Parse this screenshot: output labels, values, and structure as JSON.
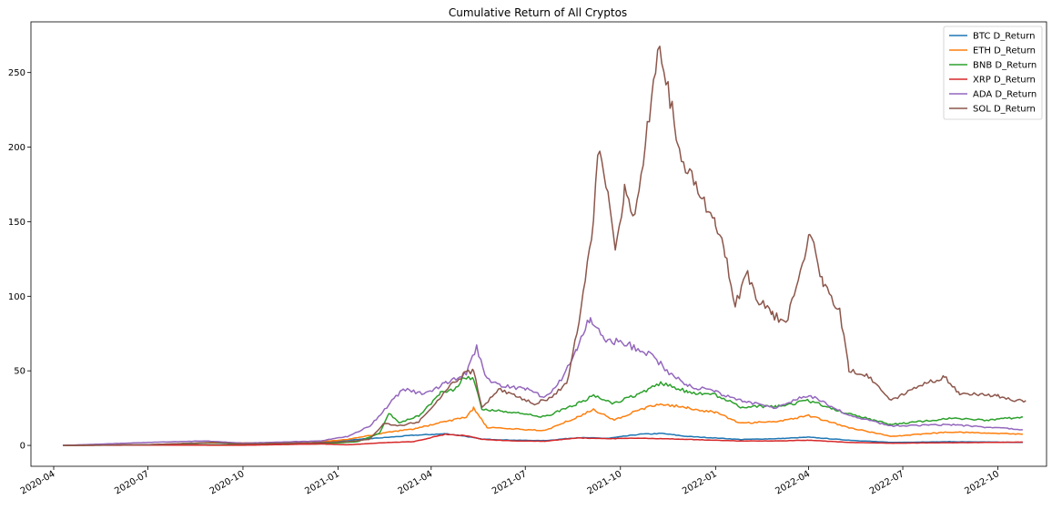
{
  "chart_data": {
    "type": "line",
    "title": "Cumulative Return of All Cryptos",
    "xlabel": "",
    "ylabel": "",
    "xlim": [
      "2020-03-10",
      "2022-11-17"
    ],
    "ylim": [
      -14,
      284
    ],
    "x_ticks": [
      "2020-04",
      "2020-07",
      "2020-10",
      "2021-01",
      "2021-04",
      "2021-07",
      "2021-10",
      "2022-01",
      "2022-04",
      "2022-07",
      "2022-10"
    ],
    "y_ticks": [
      0,
      50,
      100,
      150,
      200,
      250
    ],
    "grid": false,
    "legend_position": "top-right",
    "series": [
      {
        "name": "BTC D_Return",
        "color": "#1f77b4",
        "points": [
          [
            "2020-04-10",
            0
          ],
          [
            "2020-07-01",
            0.4
          ],
          [
            "2020-10-01",
            0.5
          ],
          [
            "2020-12-15",
            1.5
          ],
          [
            "2021-01-10",
            3.5
          ],
          [
            "2021-02-20",
            5.5
          ],
          [
            "2021-03-15",
            6.8
          ],
          [
            "2021-04-15",
            7.8
          ],
          [
            "2021-05-01",
            6.5
          ],
          [
            "2021-05-20",
            4.2
          ],
          [
            "2021-06-20",
            3.5
          ],
          [
            "2021-07-20",
            3.2
          ],
          [
            "2021-08-20",
            5.2
          ],
          [
            "2021-09-20",
            4.8
          ],
          [
            "2021-10-20",
            7.5
          ],
          [
            "2021-11-10",
            8.0
          ],
          [
            "2021-12-05",
            6.0
          ],
          [
            "2022-01-01",
            5.0
          ],
          [
            "2022-01-25",
            4.0
          ],
          [
            "2022-03-01",
            4.5
          ],
          [
            "2022-04-01",
            5.5
          ],
          [
            "2022-05-10",
            3.5
          ],
          [
            "2022-06-20",
            2.0
          ],
          [
            "2022-08-15",
            2.5
          ],
          [
            "2022-10-25",
            2.0
          ]
        ]
      },
      {
        "name": "ETH D_Return",
        "color": "#ff7f0e",
        "points": [
          [
            "2020-04-10",
            0
          ],
          [
            "2020-07-01",
            0.5
          ],
          [
            "2020-09-01",
            1.8
          ],
          [
            "2020-12-01",
            1.5
          ],
          [
            "2021-01-10",
            4.0
          ],
          [
            "2021-02-20",
            9.0
          ],
          [
            "2021-03-15",
            11.0
          ],
          [
            "2021-04-15",
            16.0
          ],
          [
            "2021-05-05",
            19.0
          ],
          [
            "2021-05-12",
            25.0
          ],
          [
            "2021-05-25",
            12.0
          ],
          [
            "2021-06-20",
            11.0
          ],
          [
            "2021-07-20",
            10.0
          ],
          [
            "2021-08-20",
            19.0
          ],
          [
            "2021-09-05",
            24.0
          ],
          [
            "2021-09-25",
            17.0
          ],
          [
            "2021-10-20",
            24.0
          ],
          [
            "2021-11-10",
            28.0
          ],
          [
            "2021-12-05",
            25.0
          ],
          [
            "2022-01-01",
            22.0
          ],
          [
            "2022-01-25",
            15.0
          ],
          [
            "2022-03-01",
            16.0
          ],
          [
            "2022-04-01",
            20.0
          ],
          [
            "2022-05-10",
            12.0
          ],
          [
            "2022-06-20",
            6.0
          ],
          [
            "2022-08-15",
            9.0
          ],
          [
            "2022-10-25",
            7.5
          ]
        ]
      },
      {
        "name": "BNB D_Return",
        "color": "#2ca02c",
        "points": [
          [
            "2020-04-10",
            0
          ],
          [
            "2020-07-01",
            0.3
          ],
          [
            "2020-10-01",
            0.4
          ],
          [
            "2020-12-15",
            1.0
          ],
          [
            "2021-01-20",
            2.5
          ],
          [
            "2021-02-10",
            8.0
          ],
          [
            "2021-02-19",
            22.0
          ],
          [
            "2021-03-01",
            15.0
          ],
          [
            "2021-03-20",
            20.0
          ],
          [
            "2021-04-10",
            35.0
          ],
          [
            "2021-04-25",
            38.0
          ],
          [
            "2021-05-03",
            46.0
          ],
          [
            "2021-05-12",
            44.0
          ],
          [
            "2021-05-20",
            24.0
          ],
          [
            "2021-06-10",
            23.0
          ],
          [
            "2021-07-20",
            19.0
          ],
          [
            "2021-08-20",
            28.0
          ],
          [
            "2021-09-05",
            33.0
          ],
          [
            "2021-09-25",
            28.0
          ],
          [
            "2021-10-20",
            35.0
          ],
          [
            "2021-11-10",
            42.0
          ],
          [
            "2021-12-05",
            36.0
          ],
          [
            "2022-01-01",
            34.0
          ],
          [
            "2022-01-25",
            26.0
          ],
          [
            "2022-03-01",
            26.0
          ],
          [
            "2022-04-01",
            30.0
          ],
          [
            "2022-05-10",
            21.0
          ],
          [
            "2022-06-20",
            14.0
          ],
          [
            "2022-08-15",
            18.0
          ],
          [
            "2022-09-20",
            17.0
          ],
          [
            "2022-10-25",
            19.0
          ]
        ]
      },
      {
        "name": "XRP D_Return",
        "color": "#d62728",
        "points": [
          [
            "2020-04-10",
            0
          ],
          [
            "2020-07-01",
            0.2
          ],
          [
            "2020-10-01",
            0.1
          ],
          [
            "2020-12-15",
            1.0
          ],
          [
            "2021-01-10",
            0.4
          ],
          [
            "2021-02-20",
            2.0
          ],
          [
            "2021-03-15",
            2.5
          ],
          [
            "2021-04-15",
            7.5
          ],
          [
            "2021-05-05",
            6.5
          ],
          [
            "2021-05-20",
            4.0
          ],
          [
            "2021-06-20",
            3.0
          ],
          [
            "2021-07-20",
            2.8
          ],
          [
            "2021-08-20",
            5.0
          ],
          [
            "2021-09-20",
            4.5
          ],
          [
            "2021-10-20",
            4.8
          ],
          [
            "2021-11-10",
            4.5
          ],
          [
            "2021-12-05",
            4.0
          ],
          [
            "2022-01-01",
            3.5
          ],
          [
            "2022-01-25",
            3.0
          ],
          [
            "2022-03-01",
            3.0
          ],
          [
            "2022-04-01",
            3.5
          ],
          [
            "2022-05-10",
            2.0
          ],
          [
            "2022-06-20",
            1.5
          ],
          [
            "2022-08-15",
            1.8
          ],
          [
            "2022-10-25",
            2.2
          ]
        ]
      },
      {
        "name": "ADA D_Return",
        "color": "#9467bd",
        "points": [
          [
            "2020-04-10",
            0
          ],
          [
            "2020-07-01",
            2.0
          ],
          [
            "2020-08-25",
            3.0
          ],
          [
            "2020-10-01",
            1.5
          ],
          [
            "2020-12-15",
            3.0
          ],
          [
            "2021-01-10",
            6.0
          ],
          [
            "2021-02-01",
            13.0
          ],
          [
            "2021-02-20",
            28.0
          ],
          [
            "2021-03-05",
            38.0
          ],
          [
            "2021-03-25",
            34.0
          ],
          [
            "2021-04-15",
            42.0
          ],
          [
            "2021-05-05",
            48.0
          ],
          [
            "2021-05-15",
            66.0
          ],
          [
            "2021-05-25",
            44.0
          ],
          [
            "2021-06-10",
            40.0
          ],
          [
            "2021-07-01",
            38.0
          ],
          [
            "2021-07-20",
            32.0
          ],
          [
            "2021-08-05",
            44.0
          ],
          [
            "2021-08-20",
            65.0
          ],
          [
            "2021-09-02",
            86.0
          ],
          [
            "2021-09-15",
            72.0
          ],
          [
            "2021-10-10",
            67.0
          ],
          [
            "2021-11-01",
            60.0
          ],
          [
            "2021-11-20",
            47.0
          ],
          [
            "2021-12-05",
            40.0
          ],
          [
            "2022-01-01",
            36.0
          ],
          [
            "2022-01-25",
            30.0
          ],
          [
            "2022-03-01",
            25.0
          ],
          [
            "2022-04-01",
            34.0
          ],
          [
            "2022-05-10",
            20.0
          ],
          [
            "2022-06-20",
            13.0
          ],
          [
            "2022-08-15",
            14.0
          ],
          [
            "2022-10-25",
            10.5
          ]
        ]
      },
      {
        "name": "SOL D_Return",
        "color": "#8c564b",
        "points": [
          [
            "2020-04-10",
            0
          ],
          [
            "2020-07-01",
            0.5
          ],
          [
            "2020-09-01",
            2.0
          ],
          [
            "2020-10-01",
            1.0
          ],
          [
            "2020-12-15",
            2.0
          ],
          [
            "2021-01-10",
            2.5
          ],
          [
            "2021-01-31",
            4.0
          ],
          [
            "2021-02-15",
            15.0
          ],
          [
            "2021-02-28",
            13.0
          ],
          [
            "2021-03-20",
            16.0
          ],
          [
            "2021-04-05",
            28.0
          ],
          [
            "2021-04-20",
            40.0
          ],
          [
            "2021-05-03",
            48.0
          ],
          [
            "2021-05-12",
            50.0
          ],
          [
            "2021-05-20",
            25.0
          ],
          [
            "2021-06-05",
            38.0
          ],
          [
            "2021-06-20",
            34.0
          ],
          [
            "2021-07-10",
            28.0
          ],
          [
            "2021-07-25",
            32.0
          ],
          [
            "2021-08-10",
            42.0
          ],
          [
            "2021-08-20",
            75.0
          ],
          [
            "2021-08-28",
            110.0
          ],
          [
            "2021-09-05",
            150.0
          ],
          [
            "2021-09-09",
            200.0
          ],
          [
            "2021-09-20",
            165.0
          ],
          [
            "2021-09-26",
            135.0
          ],
          [
            "2021-10-05",
            170.0
          ],
          [
            "2021-10-15",
            150.0
          ],
          [
            "2021-10-25",
            200.0
          ],
          [
            "2021-11-06",
            270.0
          ],
          [
            "2021-11-12",
            255.0
          ],
          [
            "2021-11-25",
            205.0
          ],
          [
            "2021-12-05",
            185.0
          ],
          [
            "2021-12-15",
            172.0
          ],
          [
            "2022-01-01",
            150.0
          ],
          [
            "2022-01-10",
            128.0
          ],
          [
            "2022-01-20",
            95.0
          ],
          [
            "2022-02-01",
            115.0
          ],
          [
            "2022-02-10",
            98.0
          ],
          [
            "2022-02-25",
            88.0
          ],
          [
            "2022-03-10",
            82.0
          ],
          [
            "2022-03-20",
            105.0
          ],
          [
            "2022-04-02",
            142.0
          ],
          [
            "2022-04-15",
            110.0
          ],
          [
            "2022-05-01",
            90.0
          ],
          [
            "2022-05-10",
            50.0
          ],
          [
            "2022-05-25",
            48.0
          ],
          [
            "2022-06-10",
            38.0
          ],
          [
            "2022-06-20",
            30.0
          ],
          [
            "2022-07-10",
            38.0
          ],
          [
            "2022-08-10",
            46.0
          ],
          [
            "2022-08-25",
            35.0
          ],
          [
            "2022-09-10",
            34.0
          ],
          [
            "2022-10-01",
            33.0
          ],
          [
            "2022-10-20",
            30.0
          ],
          [
            "2022-10-28",
            30.0
          ]
        ]
      }
    ]
  }
}
